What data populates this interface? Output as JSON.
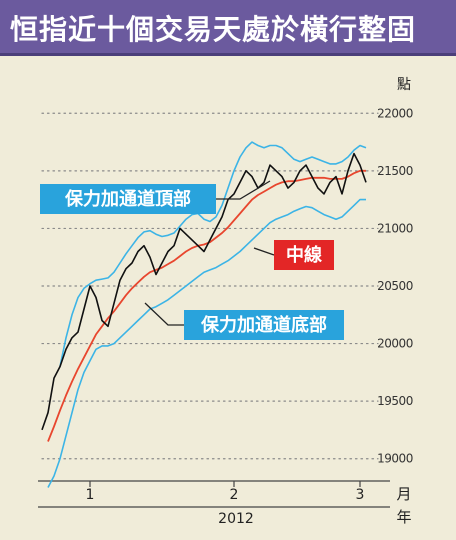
{
  "header": {
    "title": "恒指近十個交易天處於橫行整固"
  },
  "chart_data": {
    "type": "line",
    "ylabel": "點",
    "y_ticks": [
      19000,
      19500,
      20000,
      20500,
      21000,
      21500,
      22000
    ],
    "ylim": [
      18850,
      22150
    ],
    "x_ticks": [
      {
        "label": "1",
        "x": 8
      },
      {
        "label": "2",
        "x": 32
      },
      {
        "label": "3",
        "x": 53
      }
    ],
    "xlim": [
      0,
      56
    ],
    "month_label": "月",
    "year": "2012",
    "year_label": "年",
    "annotations": [
      {
        "id": "upper",
        "text": "保力加通道頂部",
        "color": "#29a3dc"
      },
      {
        "id": "middle",
        "text": "中線",
        "color": "#e32626"
      },
      {
        "id": "lower",
        "text": "保力加通道底部",
        "color": "#29a3dc"
      }
    ],
    "colors": {
      "price": "#111111",
      "middle": "#e8462e",
      "bands": "#3cb4e6",
      "grid": "#8a8a8a"
    },
    "series": [
      {
        "id": "price",
        "x": [
          0,
          1,
          2,
          3,
          4,
          5,
          6,
          7,
          8,
          9,
          10,
          11,
          12,
          13,
          14,
          15,
          16,
          17,
          18,
          19,
          20,
          21,
          22,
          23,
          24,
          25,
          26,
          27,
          28,
          29,
          30,
          31,
          32,
          33,
          34,
          35,
          36,
          37,
          38,
          39,
          40,
          41,
          42,
          43,
          44,
          45,
          46,
          47,
          48,
          49,
          50,
          51,
          52,
          53,
          54
        ],
        "values": [
          19250,
          19400,
          19700,
          19800,
          19950,
          20050,
          20100,
          20300,
          20500,
          20400,
          20200,
          20150,
          20350,
          20550,
          20650,
          20700,
          20800,
          20850,
          20750,
          20600,
          20700,
          20800,
          20850,
          21000,
          20950,
          20900,
          20850,
          20800,
          20900,
          21000,
          21100,
          21250,
          21300,
          21400,
          21500,
          21450,
          21350,
          21400,
          21550,
          21500,
          21450,
          21350,
          21400,
          21500,
          21550,
          21450,
          21350,
          21300,
          21400,
          21450,
          21300,
          21500,
          21650,
          21550,
          21400
        ]
      },
      {
        "id": "middle",
        "x": [
          1,
          2,
          3,
          4,
          5,
          6,
          7,
          8,
          9,
          10,
          11,
          12,
          13,
          14,
          15,
          16,
          17,
          18,
          19,
          20,
          21,
          22,
          23,
          24,
          25,
          26,
          27,
          28,
          29,
          30,
          31,
          32,
          33,
          34,
          35,
          36,
          37,
          38,
          39,
          40,
          41,
          42,
          43,
          44,
          45,
          46,
          47,
          48,
          49,
          50,
          51,
          52,
          53,
          54
        ],
        "values": [
          19150,
          19280,
          19420,
          19550,
          19670,
          19780,
          19880,
          19980,
          20080,
          20150,
          20220,
          20280,
          20350,
          20420,
          20480,
          20530,
          20580,
          20620,
          20640,
          20660,
          20690,
          20720,
          20760,
          20800,
          20830,
          20850,
          20860,
          20880,
          20920,
          20960,
          21010,
          21070,
          21130,
          21190,
          21250,
          21290,
          21320,
          21350,
          21380,
          21400,
          21410,
          21410,
          21420,
          21430,
          21440,
          21440,
          21440,
          21430,
          21430,
          21430,
          21450,
          21480,
          21500,
          21500
        ]
      },
      {
        "id": "upper",
        "x": [
          3,
          4,
          5,
          6,
          7,
          8,
          9,
          10,
          11,
          12,
          13,
          14,
          15,
          16,
          17,
          18,
          19,
          20,
          21,
          22,
          23,
          24,
          25,
          26,
          27,
          28,
          29,
          30,
          31,
          32,
          33,
          34,
          35,
          36,
          37,
          38,
          39,
          40,
          41,
          42,
          43,
          44,
          45,
          46,
          47,
          48,
          49,
          50,
          51,
          52,
          53,
          54
        ],
        "values": [
          19800,
          20050,
          20250,
          20400,
          20480,
          20520,
          20550,
          20560,
          20570,
          20620,
          20700,
          20780,
          20850,
          20920,
          20970,
          20980,
          20950,
          20930,
          20940,
          20960,
          21020,
          21080,
          21120,
          21130,
          21080,
          21060,
          21100,
          21200,
          21350,
          21500,
          21620,
          21700,
          21750,
          21720,
          21700,
          21720,
          21720,
          21700,
          21650,
          21600,
          21580,
          21600,
          21620,
          21600,
          21580,
          21560,
          21560,
          21580,
          21620,
          21680,
          21720,
          21700
        ]
      },
      {
        "id": "lower",
        "x": [
          1,
          2,
          3,
          4,
          5,
          6,
          7,
          8,
          9,
          10,
          11,
          12,
          13,
          14,
          15,
          16,
          17,
          18,
          19,
          20,
          21,
          22,
          23,
          24,
          25,
          26,
          27,
          28,
          29,
          30,
          31,
          32,
          33,
          34,
          35,
          36,
          37,
          38,
          39,
          40,
          41,
          42,
          43,
          44,
          45,
          46,
          47,
          48,
          49,
          50,
          51,
          52,
          53,
          54
        ],
        "values": [
          18750,
          18850,
          19000,
          19200,
          19400,
          19600,
          19750,
          19850,
          19950,
          19980,
          19980,
          20000,
          20050,
          20100,
          20150,
          20200,
          20250,
          20300,
          20320,
          20350,
          20380,
          20420,
          20460,
          20500,
          20540,
          20580,
          20620,
          20640,
          20660,
          20690,
          20720,
          20760,
          20800,
          20850,
          20900,
          20950,
          21000,
          21050,
          21080,
          21100,
          21120,
          21150,
          21170,
          21190,
          21180,
          21150,
          21120,
          21100,
          21080,
          21100,
          21150,
          21200,
          21250,
          21250
        ]
      }
    ]
  }
}
